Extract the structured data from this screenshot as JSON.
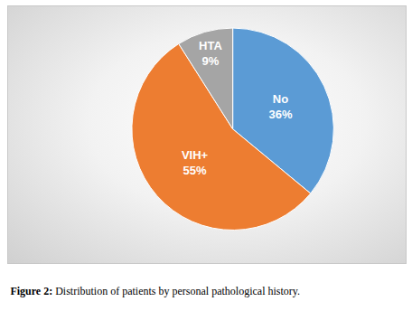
{
  "chart_data": {
    "type": "pie",
    "title": "Figure 2: Distribution of patients by personal pathological history.",
    "categories": [
      "No",
      "VIH+",
      "HTA"
    ],
    "values": [
      36,
      55,
      9
    ],
    "value_labels": [
      "36%",
      "55%",
      "9%"
    ],
    "colors": [
      "#5b9bd5",
      "#ed7d31",
      "#a5a5a5"
    ],
    "data_labels": true
  }
}
